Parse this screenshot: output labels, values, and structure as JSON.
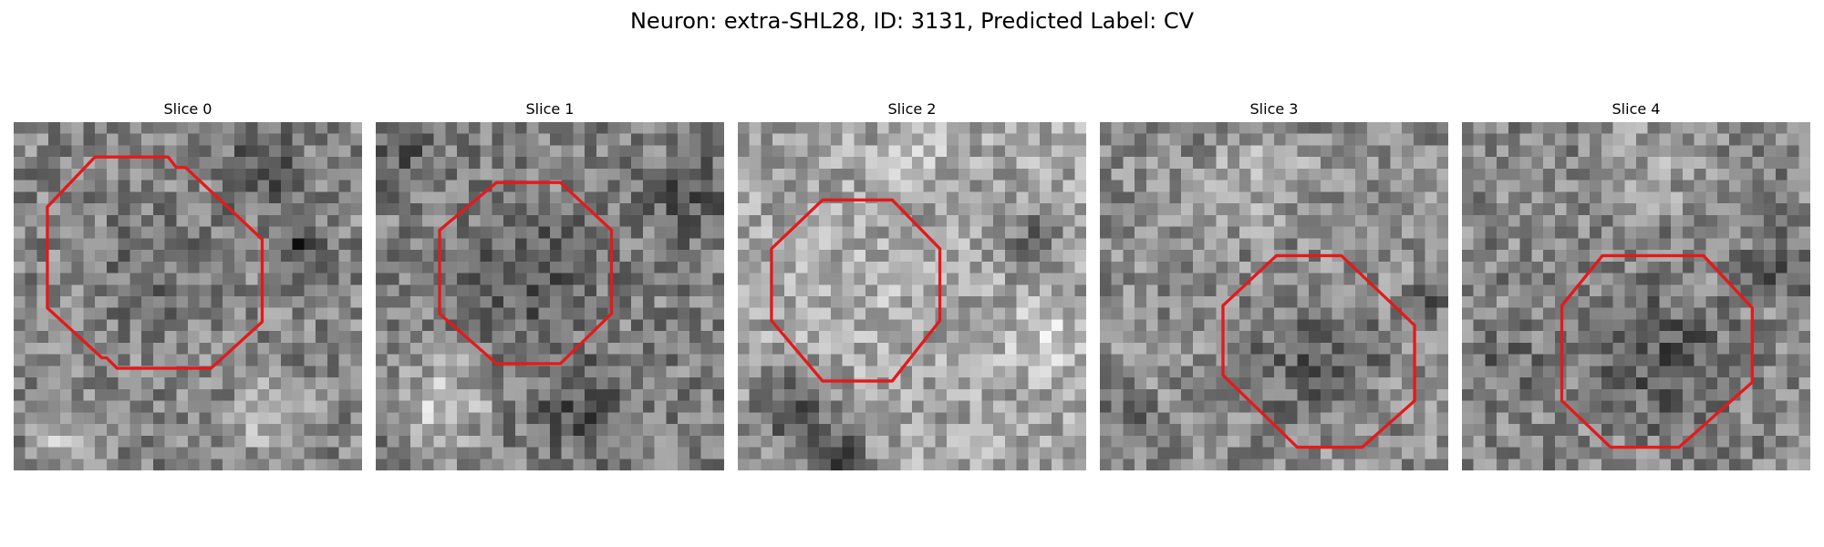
{
  "figure": {
    "title": "Neuron: extra-SHL28, ID: 3131, Predicted Label: CV"
  },
  "panels": [
    {
      "title": "Slice 0"
    },
    {
      "title": "Slice 1"
    },
    {
      "title": "Slice 2"
    },
    {
      "title": "Slice 3"
    },
    {
      "title": "Slice 4"
    }
  ],
  "style": {
    "contour_color": "#e31a1c",
    "colormap": "grayscale"
  }
}
